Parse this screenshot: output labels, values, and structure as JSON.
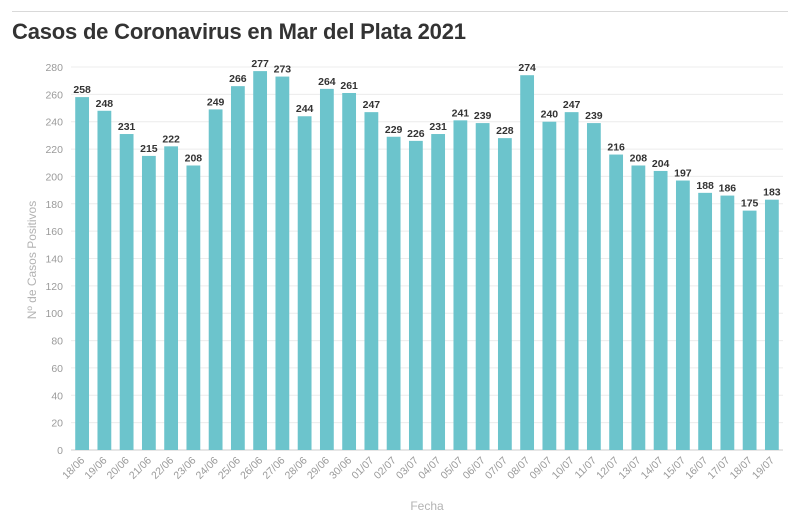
{
  "chart_data": {
    "type": "bar",
    "title": "Casos de Coronavirus en Mar del Plata 2021",
    "xlabel": "Fecha",
    "ylabel": "Nº de Casos Positivos",
    "ylim": [
      0,
      280
    ],
    "ytick_step": 20,
    "grid": true,
    "bar_color": "#6cc4cc",
    "categories": [
      "18/06",
      "19/06",
      "20/06",
      "21/06",
      "22/06",
      "23/06",
      "24/06",
      "25/06",
      "26/06",
      "27/06",
      "28/06",
      "29/06",
      "30/06",
      "01/07",
      "02/07",
      "03/07",
      "04/07",
      "05/07",
      "06/07",
      "07/07",
      "08/07",
      "09/07",
      "10/07",
      "11/07",
      "12/07",
      "13/07",
      "14/07",
      "15/07",
      "16/07",
      "17/07",
      "18/07",
      "19/07"
    ],
    "values": [
      258,
      248,
      231,
      215,
      222,
      208,
      249,
      266,
      277,
      273,
      244,
      264,
      261,
      247,
      229,
      226,
      231,
      241,
      239,
      228,
      274,
      240,
      247,
      239,
      216,
      208,
      204,
      197,
      188,
      186,
      175,
      183
    ]
  }
}
